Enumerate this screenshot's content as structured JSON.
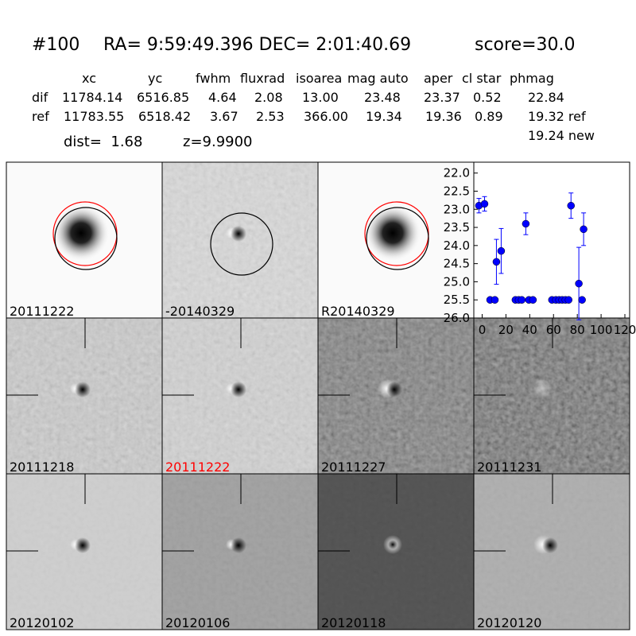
{
  "header": {
    "id": "#100",
    "coords": "RA= 9:59:49.396 DEC= 2:01:40.69",
    "score": "score=30.0",
    "dist": "dist=  1.68",
    "z": "z=9.9900"
  },
  "table": {
    "columns": [
      "xc",
      "yc",
      "fwhm",
      "fluxrad",
      "isoarea",
      "mag auto",
      "aper",
      "cl star",
      "phmag"
    ],
    "rows": [
      [
        "dif",
        "11784.14",
        "6516.85",
        "4.64",
        "2.08",
        "13.00",
        "23.48",
        "23.37",
        "0.52",
        "22.84"
      ],
      [
        "ref",
        "11783.55",
        "6518.42",
        "3.67",
        "2.53",
        "366.00",
        "19.34",
        "19.36",
        "0.89",
        "19.32 ref"
      ]
    ],
    "extra": "19.24 new"
  },
  "panels": [
    {
      "label": "20111222"
    },
    {
      "label": "-20140329"
    },
    {
      "label": "R20140329"
    },
    {
      "label": "20111218"
    },
    {
      "label": "20111222",
      "color": "#ff0000"
    },
    {
      "label": "20111227"
    },
    {
      "label": "20111231"
    },
    {
      "label": "20120102"
    },
    {
      "label": "20120106"
    },
    {
      "label": "20120118"
    },
    {
      "label": "20120120"
    }
  ],
  "chart_data": {
    "type": "scatter",
    "color": "#0000ff",
    "xlim": [
      -7,
      124
    ],
    "ylim": [
      26,
      21.7
    ],
    "xticks": [
      0,
      20,
      40,
      60,
      80,
      100,
      120
    ],
    "yticks": [
      {
        "value": 22,
        "label": "22.0"
      },
      {
        "value": 22.5,
        "label": "22.5"
      },
      {
        "value": 23,
        "label": "23.0"
      },
      {
        "value": 23.5,
        "label": "23.5"
      },
      {
        "value": 24,
        "label": "24.0"
      },
      {
        "value": 24.5,
        "label": "24.5"
      },
      {
        "value": 25,
        "label": "25.0"
      },
      {
        "value": 25.5,
        "label": "25.5"
      },
      {
        "value": 26,
        "label": "26.0"
      }
    ],
    "x": [
      -2.7,
      2,
      6.7,
      10.7,
      12,
      16,
      28,
      30.7,
      33.3,
      36.7,
      39.3,
      42.7,
      58.7,
      62,
      64.7,
      67.3,
      70,
      72.7,
      74.7,
      81.3,
      84,
      85.3
    ],
    "values": [
      22.9,
      22.85,
      25.5,
      25.5,
      24.45,
      24.15,
      25.5,
      25.5,
      25.5,
      23.4,
      25.5,
      25.5,
      25.5,
      25.5,
      25.5,
      25.5,
      25.5,
      25.5,
      22.9,
      25.05,
      25.5,
      23.55
    ],
    "errors": [
      0.2,
      0.2,
      null,
      null,
      0.62,
      0.62,
      null,
      null,
      null,
      0.3,
      null,
      null,
      null,
      null,
      null,
      null,
      null,
      null,
      0.35,
      1.0,
      null,
      0.45
    ]
  }
}
